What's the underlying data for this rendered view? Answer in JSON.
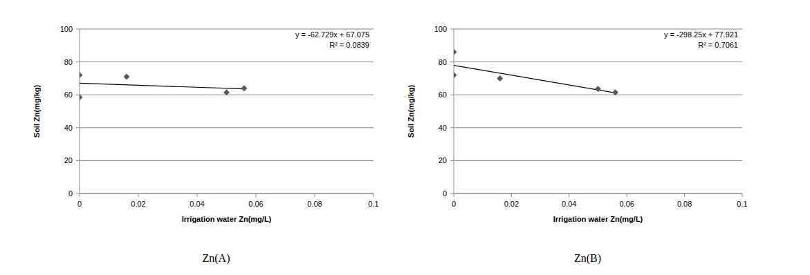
{
  "chart_data": [
    {
      "type": "scatter",
      "title": "Zn(A)",
      "x_label": "Irrigation water Zn(mg/L)",
      "y_label": "Soil Zn(mg/kg)",
      "x": [
        0,
        0,
        0.016,
        0.05,
        0.056
      ],
      "series": [
        {
          "values": [
            72,
            58.5,
            71,
            61.5,
            64
          ],
          "color": "#595959",
          "marker": "diamond"
        }
      ],
      "trendline": {
        "slope": -62.729,
        "intercept": 67.075,
        "equation": "y = -62.729x + 67.075",
        "r_squared": "R² = 0.0839",
        "color": "#000000"
      },
      "xlim": [
        0,
        0.1
      ],
      "xticks": [
        0,
        0.02,
        0.04,
        0.06,
        0.08,
        0.1
      ],
      "ylim": [
        0,
        100
      ],
      "yticks": [
        0,
        20,
        40,
        60,
        80,
        100
      ],
      "grid": true
    },
    {
      "type": "scatter",
      "title": "Zn(B)",
      "x_label": "Irrigation water Zn(mg/L)",
      "y_label": "Soil Zn(mg/kg)",
      "x": [
        0,
        0,
        0.016,
        0.05,
        0.056
      ],
      "series": [
        {
          "values": [
            86,
            72,
            70,
            63.5,
            61.5
          ],
          "color": "#595959",
          "marker": "diamond"
        }
      ],
      "trendline": {
        "slope": -298.25,
        "intercept": 77.921,
        "equation": "y = -298.25x + 77.921",
        "r_squared": "R² = 0.7061",
        "color": "#000000"
      },
      "xlim": [
        0,
        0.1
      ],
      "xticks": [
        0,
        0.02,
        0.04,
        0.06,
        0.08,
        0.1
      ],
      "ylim": [
        0,
        100
      ],
      "yticks": [
        0,
        20,
        40,
        60,
        80,
        100
      ],
      "grid": true
    }
  ]
}
